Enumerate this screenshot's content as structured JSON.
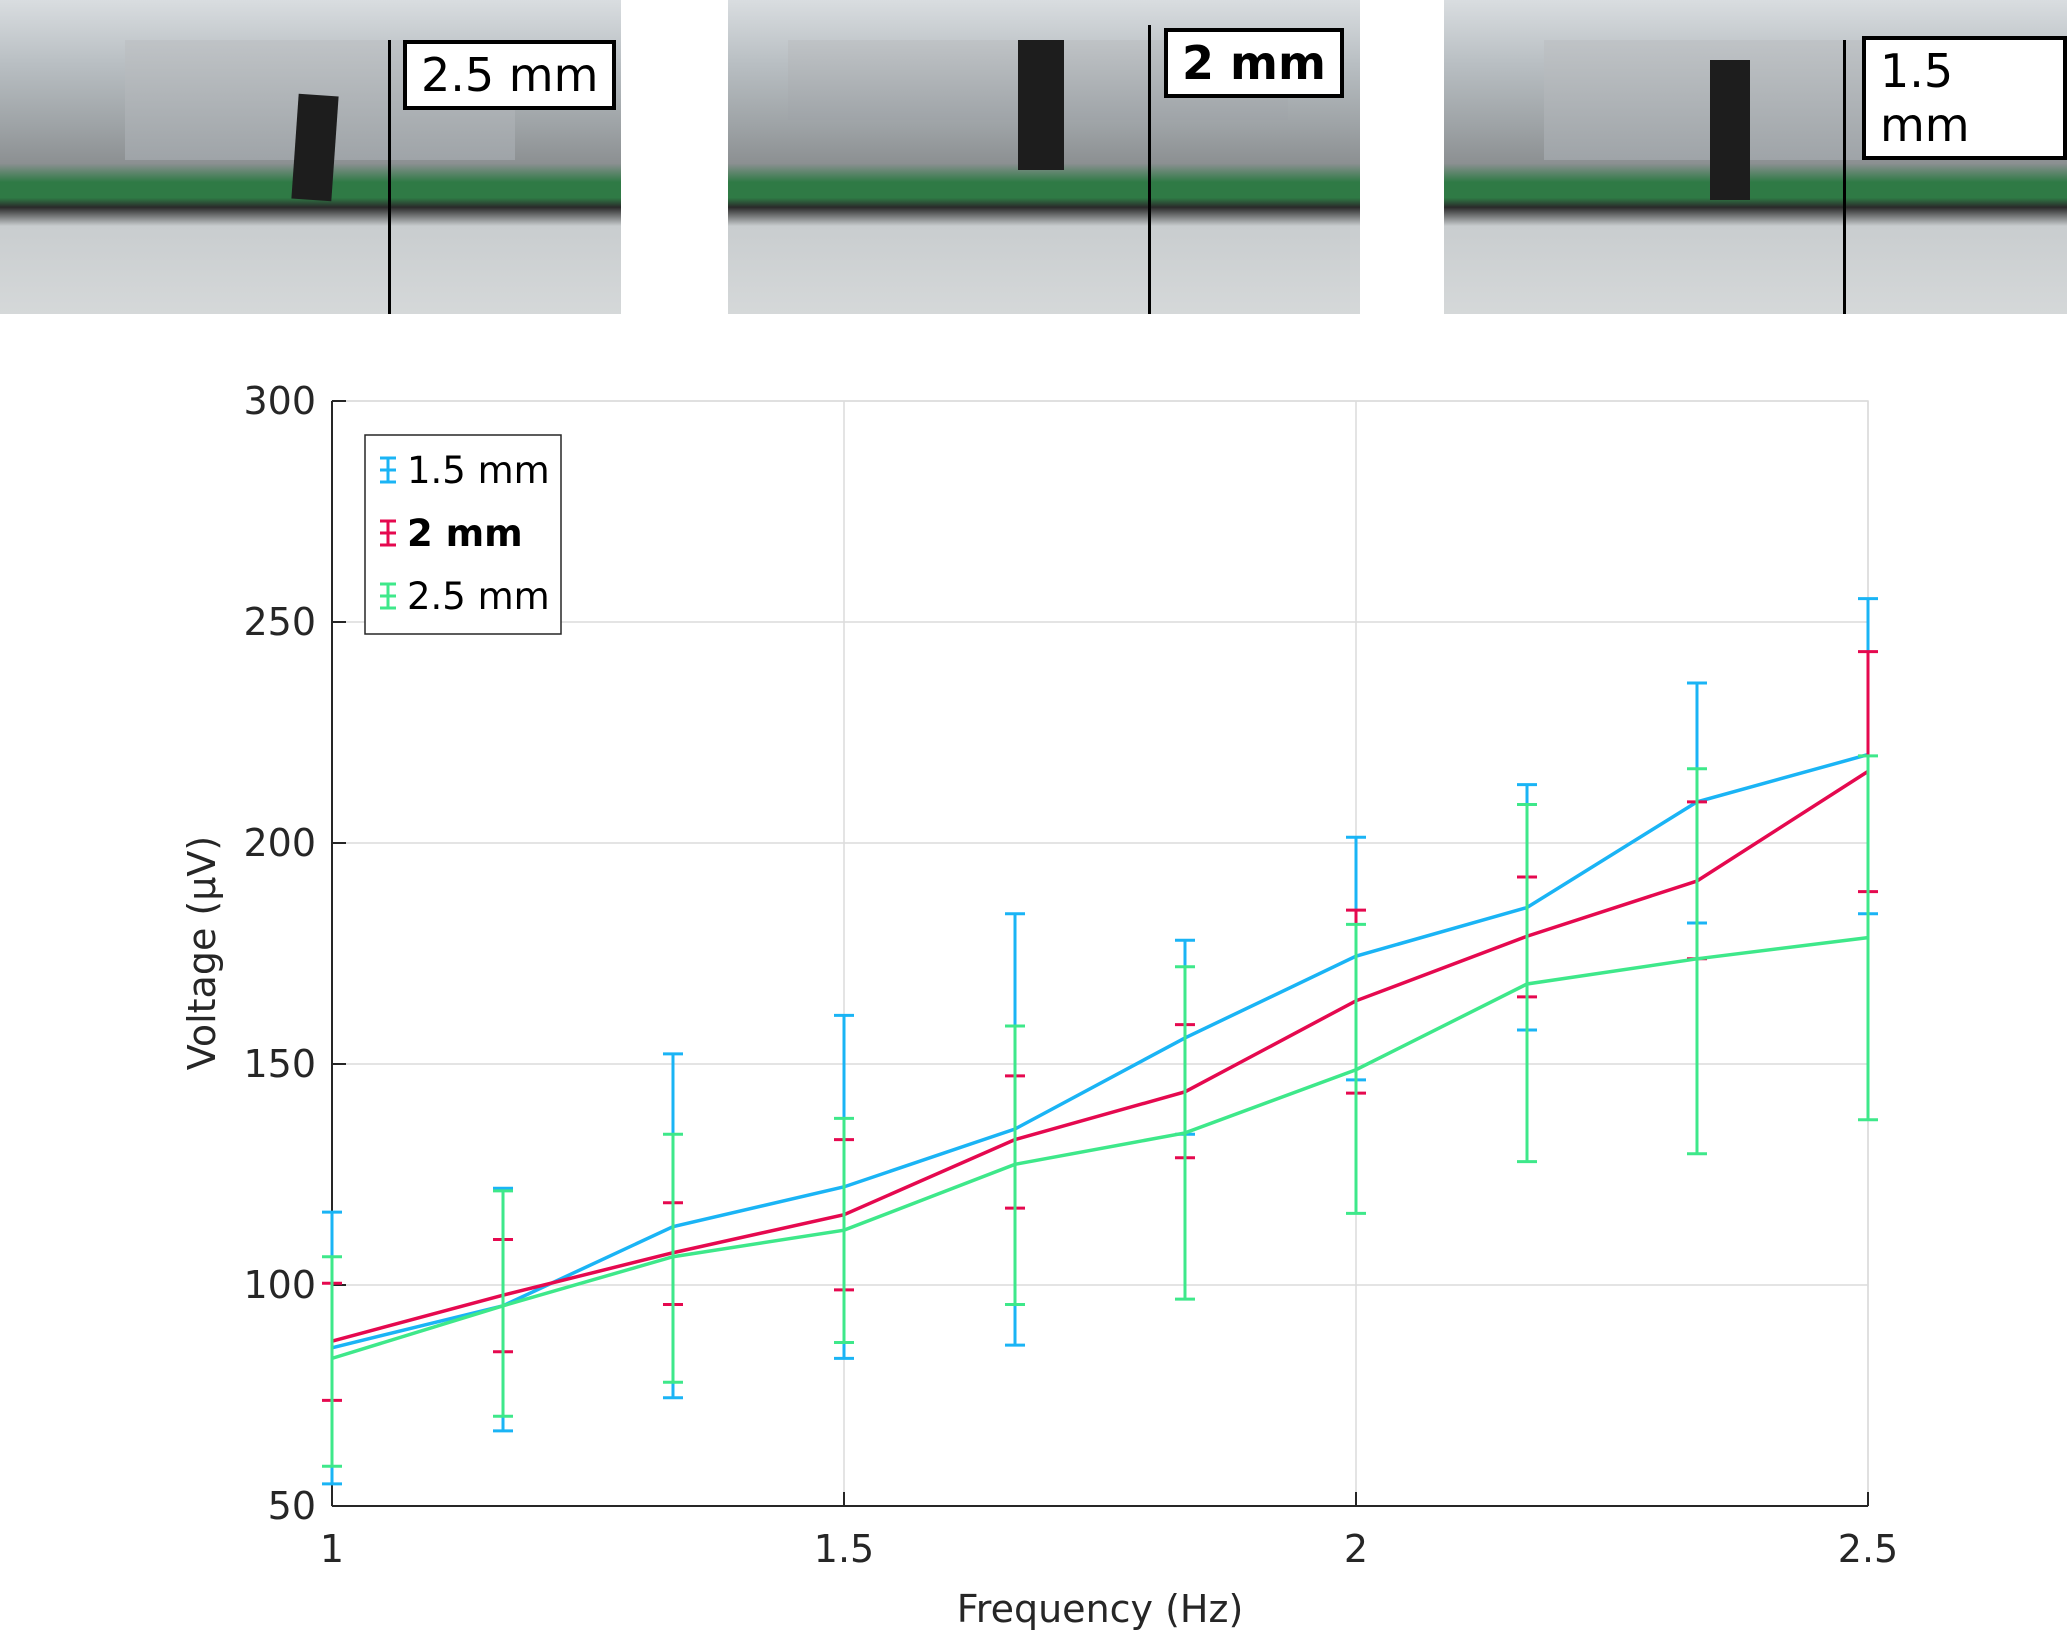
{
  "photos": [
    {
      "label": "2.5 mm"
    },
    {
      "label": "2 mm"
    },
    {
      "label": "1.5 mm"
    }
  ],
  "chart_data": {
    "type": "line",
    "title": "",
    "xlabel": "Frequency (Hz)",
    "ylabel": "Voltage (µV)",
    "xlim": [
      1,
      2.5
    ],
    "ylim": [
      50,
      300
    ],
    "xticks": [
      "1",
      "1.5",
      "2",
      "2.5"
    ],
    "yticks": [
      "50",
      "100",
      "150",
      "200",
      "250",
      "300"
    ],
    "grid": true,
    "legend_position": "top-left",
    "x": [
      1,
      1.167,
      1.333,
      1.5,
      1.667,
      1.833,
      2,
      2.167,
      2.333,
      2.5
    ],
    "series": [
      {
        "name": "1.5 mm",
        "color": "#1ab4f5",
        "bold": false,
        "values": [
          85.8,
          95.3,
          113.2,
          122.2,
          135.3,
          155.9,
          174.4,
          185.4,
          209.3,
          220
        ],
        "upper": [
          116.5,
          121.9,
          152.3,
          161,
          184,
          178,
          201.3,
          213.2,
          236.2,
          255.3
        ],
        "lower": [
          55,
          67,
          74.5,
          83.4,
          86.4,
          134.1,
          146.4,
          157.7,
          181.9,
          184
        ]
      },
      {
        "name": "2 mm",
        "color": "#e5094f",
        "bold": true,
        "values": [
          87.3,
          97.7,
          107.3,
          115.9,
          132.9,
          143.7,
          164.3,
          178.9,
          191.4,
          216.2
        ],
        "upper": [
          100.4,
          110.3,
          118.6,
          132.9,
          147.3,
          158.9,
          184.8,
          192.3,
          209.3,
          243.3
        ],
        "lower": [
          73.9,
          84.9,
          95.6,
          98.9,
          117.4,
          128.8,
          143.4,
          165.2,
          173.8,
          189
        ]
      },
      {
        "name": "2.5 mm",
        "color": "#3ee88a",
        "bold": false,
        "values": [
          83.4,
          95.3,
          106.4,
          112.4,
          127.3,
          134.4,
          148.7,
          168.1,
          173.8,
          178.6
        ],
        "upper": [
          106.4,
          121.3,
          134.1,
          137.7,
          158.6,
          172,
          181.6,
          208.7,
          216.8,
          219.7
        ],
        "lower": [
          59,
          70.3,
          78,
          87,
          95.6,
          96.8,
          116.2,
          127.9,
          129.7,
          137.4
        ]
      }
    ]
  }
}
